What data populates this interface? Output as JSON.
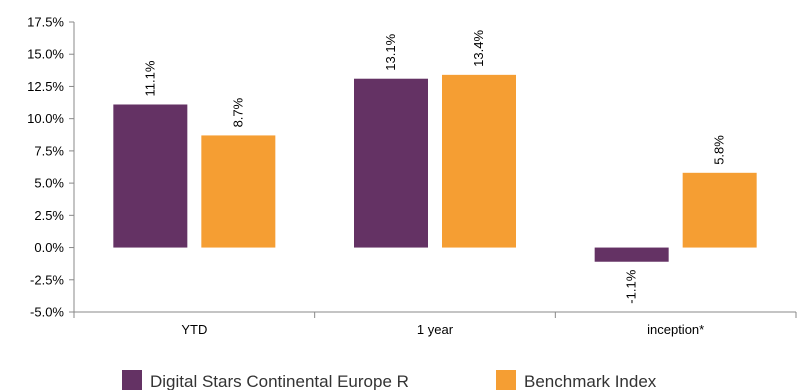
{
  "chart_data": {
    "type": "bar",
    "categories": [
      "YTD",
      "1 year",
      "inception*"
    ],
    "series": [
      {
        "name": "Digital Stars Continental Europe R",
        "color": "#643264",
        "values": [
          11.1,
          13.1,
          -1.1
        ]
      },
      {
        "name": "Benchmark Index",
        "color": "#F59E33",
        "values": [
          8.7,
          13.4,
          5.8
        ]
      }
    ],
    "data_labels": [
      [
        "11.1%",
        "13.1%",
        "-1.1%"
      ],
      [
        "8.7%",
        "13.4%",
        "5.8%"
      ]
    ],
    "yticks": [
      "17.5%",
      "15.0%",
      "12.5%",
      "10.0%",
      "7.5%",
      "5.0%",
      "2.5%",
      "0.0%",
      "-2.5%",
      "-5.0%"
    ],
    "ylim": [
      -5,
      17.5
    ],
    "grid": false,
    "legend_position": "bottom"
  }
}
